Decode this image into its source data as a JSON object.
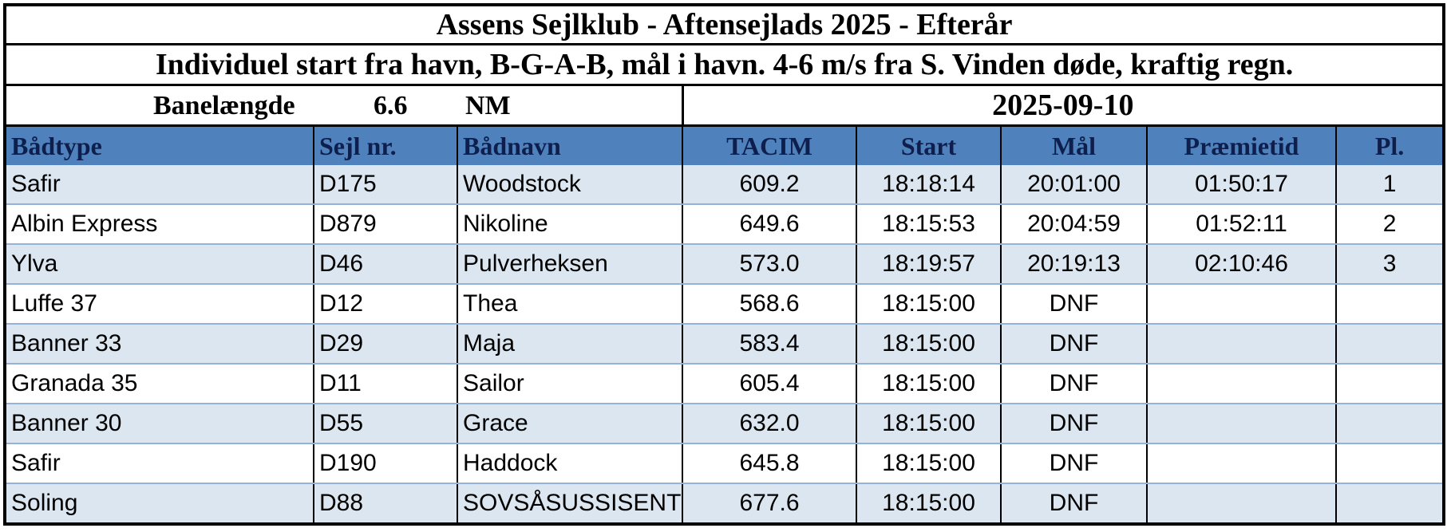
{
  "header": {
    "title": "Assens Sejlklub - Aftensejlads 2025 - Efterår",
    "subtitle": "Individuel start fra havn, B-G-A-B, mål i havn. 4-6 m/s fra S. Vinden døde, kraftig regn."
  },
  "info": {
    "label": "Banelængde",
    "value": "6.6",
    "unit": "NM",
    "date": "2025-09-10"
  },
  "table": {
    "columns": [
      "Bådtype",
      "Sejl nr.",
      "Bådnavn",
      "TACIM",
      "Start",
      "Mål",
      "Præmietid",
      "Pl."
    ],
    "rows": [
      [
        "Safir",
        "D175",
        "Woodstock",
        "609.2",
        "18:18:14",
        "20:01:00",
        "01:50:17",
        "1"
      ],
      [
        "Albin Express",
        "D879",
        "Nikoline",
        "649.6",
        "18:15:53",
        "20:04:59",
        "01:52:11",
        "2"
      ],
      [
        "Ylva",
        "D46",
        "Pulverheksen",
        "573.0",
        "18:19:57",
        "20:19:13",
        "02:10:46",
        "3"
      ],
      [
        "Luffe 37",
        "D12",
        "Thea",
        "568.6",
        "18:15:00",
        "DNF",
        null,
        null
      ],
      [
        "Banner 33",
        "D29",
        "Maja",
        "583.4",
        "18:15:00",
        "DNF",
        null,
        null
      ],
      [
        "Granada 35",
        "D11",
        "Sailor",
        "605.4",
        "18:15:00",
        "DNF",
        null,
        null
      ],
      [
        "Banner 30",
        "D55",
        "Grace",
        "632.0",
        "18:15:00",
        "DNF",
        null,
        null
      ],
      [
        "Safir",
        "D190",
        "Haddock",
        "645.8",
        "18:15:00",
        "DNF",
        null,
        null
      ],
      [
        "Soling",
        "D88",
        "SOVSÅSUSSISENT",
        "677.6",
        "18:15:00",
        "DNF",
        null,
        null
      ]
    ]
  }
}
